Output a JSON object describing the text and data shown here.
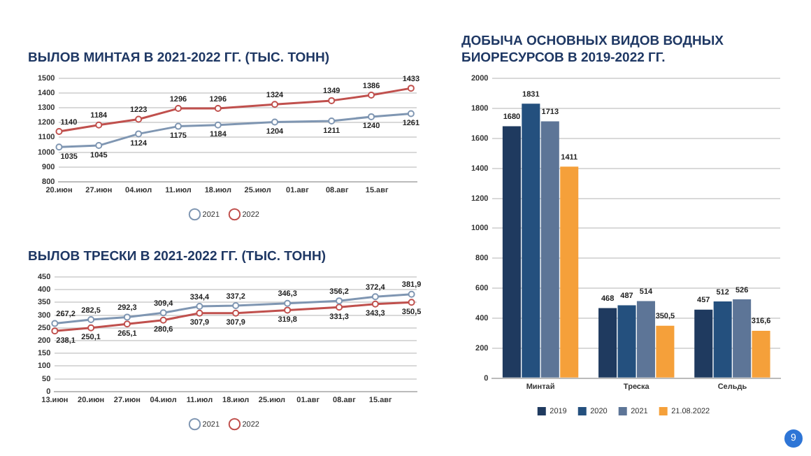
{
  "chart_data": [
    {
      "type": "line",
      "title": "ВЫЛОВ МИНТАЯ В 2021-2022 ГГ. (ТЫС. ТОНН)",
      "x": [
        "--06-20",
        "--06-27",
        "--07-04",
        "--07-11",
        "--07-18",
        "--07-28",
        "--08-07",
        "--08-14",
        "--08-21"
      ],
      "series": [
        {
          "name": "2021",
          "color": "#7f96b2",
          "values": [
            1035,
            1045,
            1124,
            1175,
            1184,
            1204,
            1211,
            1240,
            1261
          ]
        },
        {
          "name": "2022",
          "color": "#c0504d",
          "values": [
            1140,
            1184,
            1223,
            1296,
            1296,
            1324,
            1349,
            1386,
            1433
          ]
        }
      ],
      "xlim": [
        "--06-20",
        "--08-22"
      ],
      "xticks": [
        {
          "value": "--06-20",
          "label": "20.июн"
        },
        {
          "value": "--06-27",
          "label": "27.июн"
        },
        {
          "value": "--07-04",
          "label": "04.июл"
        },
        {
          "value": "--07-11",
          "label": "11.июл"
        },
        {
          "value": "--07-18",
          "label": "18.июл"
        },
        {
          "value": "--07-25",
          "label": "25.июл"
        },
        {
          "value": "--08-01",
          "label": "01.авг"
        },
        {
          "value": "--08-08",
          "label": "08.авг"
        },
        {
          "value": "--08-15",
          "label": "15.авг"
        }
      ],
      "ylim": [
        800,
        1500
      ],
      "yticks": [
        800,
        900,
        1000,
        1100,
        1200,
        1300,
        1400,
        1500
      ],
      "grid": "y",
      "legend": "bottom",
      "marker": "circle",
      "data_labels": true
    },
    {
      "type": "line",
      "title": "ВЫЛОВ ТРЕСКИ В 2021-2022 ГГ. (ТЫС. ТОНН)",
      "x": [
        "--06-13",
        "--06-20",
        "--06-27",
        "--07-04",
        "--07-11",
        "--07-18",
        "--07-28",
        "--08-07",
        "--08-14",
        "--08-21"
      ],
      "series": [
        {
          "name": "2021",
          "color": "#7f96b2",
          "values": [
            267.2,
            282.5,
            292.3,
            309.4,
            334.4,
            337.2,
            346.3,
            356.2,
            372.4,
            381.9
          ],
          "value_labels": [
            "267,2",
            "282,5",
            "292,3",
            "309,4",
            "334,4",
            "337,2",
            "346,3",
            "356,2",
            "372,4",
            "381,9"
          ]
        },
        {
          "name": "2022",
          "color": "#c0504d",
          "values": [
            238.1,
            250.1,
            265.1,
            280.6,
            307.9,
            307.9,
            319.8,
            331.3,
            343.3,
            350.5
          ],
          "value_labels": [
            "238,1",
            "250,1",
            "265,1",
            "280,6",
            "307,9",
            "307,9",
            "319,8",
            "331,3",
            "343,3",
            "350,5"
          ]
        }
      ],
      "xlim": [
        "--06-13",
        "--08-22"
      ],
      "xticks": [
        {
          "value": "--06-13",
          "label": "13.июн"
        },
        {
          "value": "--06-20",
          "label": "20.июн"
        },
        {
          "value": "--06-27",
          "label": "27.июн"
        },
        {
          "value": "--07-04",
          "label": "04.июл"
        },
        {
          "value": "--07-11",
          "label": "11.июл"
        },
        {
          "value": "--07-18",
          "label": "18.июл"
        },
        {
          "value": "--07-25",
          "label": "25.июл"
        },
        {
          "value": "--08-01",
          "label": "01.авг"
        },
        {
          "value": "--08-08",
          "label": "08.авг"
        },
        {
          "value": "--08-15",
          "label": "15.авг"
        }
      ],
      "ylim": [
        0,
        450
      ],
      "yticks": [
        0,
        50,
        100,
        150,
        200,
        250,
        300,
        350,
        400,
        450
      ],
      "grid": "y",
      "legend": "bottom",
      "marker": "circle"
    },
    {
      "type": "bar",
      "title": "ДОБЫЧА ОСНОВНЫХ ВИДОВ ВОДНЫХ БИОРЕСУРСОВ В 2019-2022 ГГ.",
      "categories": [
        "Минтай",
        "Треска",
        "Сельдь"
      ],
      "series": [
        {
          "name": "2019",
          "color": "#1f3a5f",
          "values": [
            1680,
            468,
            457
          ],
          "value_labels": [
            "1680",
            "468",
            "457"
          ]
        },
        {
          "name": "2020",
          "color": "#24507e",
          "values": [
            1831,
            487,
            512
          ],
          "value_labels": [
            "1831",
            "487",
            "512"
          ]
        },
        {
          "name": "2021",
          "color": "#5d7597",
          "values": [
            1713,
            514,
            526
          ],
          "value_labels": [
            "1713",
            "514",
            "526"
          ]
        },
        {
          "name": "21.08.2022",
          "color": "#f5a03a",
          "values": [
            1411,
            350.5,
            316.6
          ],
          "value_labels": [
            "1411",
            "350,5",
            "316,6"
          ]
        }
      ],
      "ylim": [
        0,
        2000
      ],
      "yticks": [
        0,
        200,
        400,
        600,
        800,
        1000,
        1200,
        1400,
        1600,
        1800,
        2000
      ],
      "grid": "y",
      "legend": "bottom",
      "annotations": [
        "9"
      ]
    }
  ]
}
